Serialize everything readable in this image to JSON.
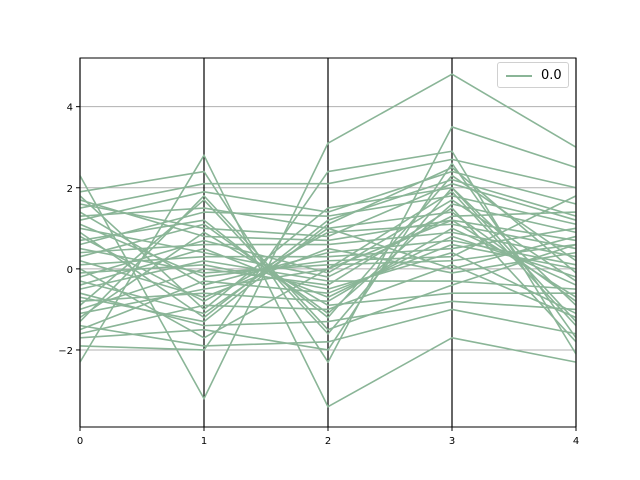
{
  "chart_data": {
    "type": "line",
    "chart_kind": "parallel-coordinates",
    "title": "",
    "xlabel": "",
    "ylabel": "",
    "x": [
      0,
      1,
      2,
      3,
      4
    ],
    "xticks": [
      "0",
      "1",
      "2",
      "3",
      "4"
    ],
    "xlim": [
      0,
      4
    ],
    "ylim": [
      -3.9,
      5.2
    ],
    "yticks": [
      -2,
      0,
      2,
      4
    ],
    "ytick_labels": [
      "−2",
      "0",
      "2",
      "4"
    ],
    "grid": "horizontal",
    "legend_position": "top-right",
    "legend": [
      "0.0"
    ],
    "series_color": "#8ab597",
    "vertical_axis_color": "#000000",
    "series": [
      {
        "values": [
          2.3,
          -3.2,
          3.1,
          4.8,
          3.0
        ]
      },
      {
        "values": [
          -2.3,
          2.8,
          -3.4,
          -1.7,
          -2.3
        ]
      },
      {
        "values": [
          1.9,
          2.4,
          -2.3,
          3.5,
          2.5
        ]
      },
      {
        "values": [
          -1.9,
          -2.0,
          2.4,
          2.9,
          -2.1
        ]
      },
      {
        "values": [
          1.5,
          2.1,
          2.1,
          2.7,
          2.0
        ]
      },
      {
        "values": [
          -1.7,
          -1.5,
          -2.0,
          2.6,
          -1.7
        ]
      },
      {
        "values": [
          1.2,
          1.9,
          1.4,
          2.4,
          1.6
        ]
      },
      {
        "values": [
          -1.4,
          -1.9,
          -1.8,
          -1.0,
          -1.6
        ]
      },
      {
        "values": [
          0.9,
          -1.2,
          1.2,
          2.2,
          1.3
        ]
      },
      {
        "values": [
          -0.9,
          1.7,
          -1.6,
          2.0,
          -1.3
        ]
      },
      {
        "values": [
          0.6,
          1.4,
          1.3,
          1.8,
          1.1
        ]
      },
      {
        "values": [
          -0.6,
          -1.4,
          -1.3,
          -0.8,
          -1.0
        ]
      },
      {
        "values": [
          0.3,
          1.1,
          -1.1,
          1.6,
          0.9
        ]
      },
      {
        "values": [
          -0.3,
          -1.1,
          1.0,
          1.4,
          -0.8
        ]
      },
      {
        "values": [
          1.7,
          0.8,
          0.7,
          1.2,
          0.7
        ]
      },
      {
        "values": [
          -1.2,
          0.9,
          -0.9,
          -0.6,
          -0.6
        ]
      },
      {
        "values": [
          0.8,
          -0.8,
          0.9,
          1.1,
          0.5
        ]
      },
      {
        "values": [
          -0.8,
          -0.6,
          -0.8,
          1.0,
          -0.4
        ]
      },
      {
        "values": [
          0.4,
          0.6,
          0.6,
          0.9,
          0.3
        ]
      },
      {
        "values": [
          -0.4,
          0.5,
          -0.7,
          0.8,
          -0.2
        ]
      },
      {
        "values": [
          1.4,
          -0.4,
          0.4,
          0.7,
          0.1
        ]
      },
      {
        "values": [
          -1.5,
          -0.3,
          -0.6,
          0.6,
          0.0
        ]
      },
      {
        "values": [
          0.1,
          0.3,
          0.3,
          0.5,
          1.0
        ]
      },
      {
        "values": [
          -0.1,
          0.1,
          -0.5,
          0.4,
          -1.1
        ]
      },
      {
        "values": [
          1.1,
          -0.2,
          0.2,
          0.3,
          1.8
        ]
      },
      {
        "values": [
          -1.0,
          0.0,
          -0.4,
          1.5,
          -1.8
        ]
      },
      {
        "values": [
          0.5,
          -0.1,
          0.1,
          0.2,
          0.6
        ]
      },
      {
        "values": [
          -0.5,
          0.2,
          -0.3,
          -0.3,
          -0.5
        ]
      },
      {
        "values": [
          1.0,
          0.4,
          -0.2,
          1.3,
          1.4
        ]
      },
      {
        "values": [
          -1.1,
          -0.5,
          0.0,
          1.9,
          -1.4
        ]
      },
      {
        "values": [
          0.2,
          -0.7,
          0.5,
          -0.1,
          0.4
        ]
      },
      {
        "values": [
          -0.2,
          0.7,
          -0.1,
          1.7,
          -0.3
        ]
      },
      {
        "values": [
          1.6,
          1.0,
          0.8,
          2.1,
          1.2
        ]
      },
      {
        "values": [
          -1.6,
          -0.9,
          -1.0,
          0.1,
          -1.2
        ]
      },
      {
        "values": [
          0.7,
          1.2,
          -1.2,
          2.3,
          0.2
        ]
      },
      {
        "values": [
          -0.7,
          -1.3,
          1.1,
          2.5,
          -0.1
        ]
      },
      {
        "values": [
          1.3,
          1.5,
          1.0,
          0.0,
          0.8
        ]
      },
      {
        "values": [
          -1.3,
          1.8,
          -1.5,
          -0.4,
          0.6
        ]
      },
      {
        "values": [
          0.0,
          -1.7,
          0.0,
          1.2,
          -0.7
        ]
      },
      {
        "values": [
          1.8,
          -1.0,
          1.5,
          2.0,
          -0.9
        ]
      }
    ]
  }
}
